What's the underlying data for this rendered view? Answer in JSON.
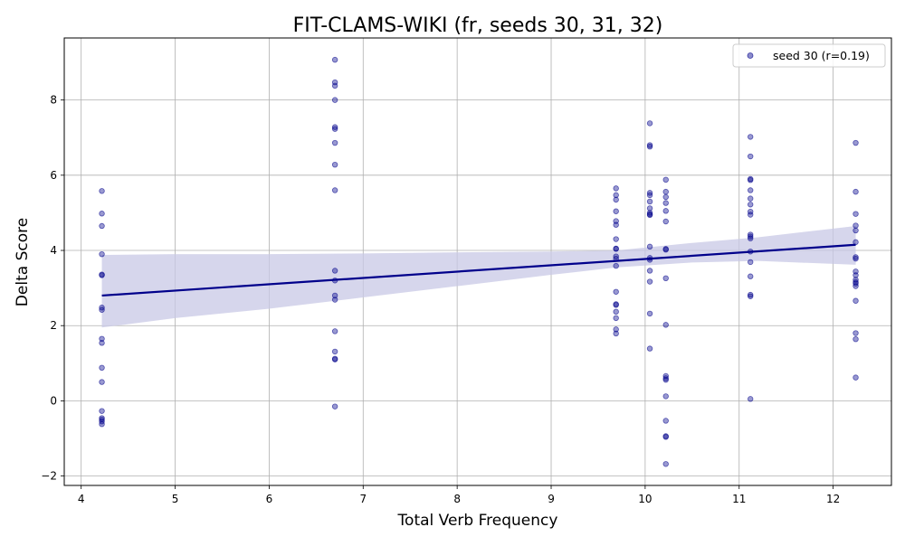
{
  "chart_data": {
    "type": "scatter",
    "title": "FIT-CLAMS-WIKI (fr, seeds 30, 31, 32)",
    "xlabel": "Total Verb Frequency",
    "ylabel": "Delta Score",
    "xlim": [
      3.82,
      12.62
    ],
    "ylim": [
      -2.25,
      9.65
    ],
    "xticks": [
      4,
      5,
      6,
      7,
      8,
      9,
      10,
      11,
      12
    ],
    "yticks": [
      -2,
      0,
      2,
      4,
      6,
      8
    ],
    "ytick_labels": [
      "−2",
      "0",
      "2",
      "4",
      "6",
      "8"
    ],
    "grid": true,
    "legend_position": "top-right",
    "colors": {
      "points": "#00008b",
      "line": "#00008b",
      "band": "#c8c8e6"
    },
    "series": [
      {
        "name": "seed 30 (r=0.19)",
        "points": [
          [
            4.22,
            5.58
          ],
          [
            4.22,
            4.98
          ],
          [
            4.22,
            4.65
          ],
          [
            4.22,
            3.9
          ],
          [
            4.22,
            3.36
          ],
          [
            4.22,
            3.34
          ],
          [
            4.22,
            2.48
          ],
          [
            4.22,
            2.42
          ],
          [
            4.22,
            1.65
          ],
          [
            4.22,
            1.54
          ],
          [
            4.22,
            0.88
          ],
          [
            4.22,
            0.5
          ],
          [
            4.22,
            -0.27
          ],
          [
            4.22,
            -0.46
          ],
          [
            4.22,
            -0.5
          ],
          [
            4.22,
            -0.55
          ],
          [
            4.22,
            -0.62
          ],
          [
            6.7,
            9.07
          ],
          [
            6.7,
            8.47
          ],
          [
            6.7,
            8.38
          ],
          [
            6.7,
            8.0
          ],
          [
            6.7,
            7.28
          ],
          [
            6.7,
            7.23
          ],
          [
            6.7,
            6.86
          ],
          [
            6.7,
            6.28
          ],
          [
            6.7,
            5.6
          ],
          [
            6.7,
            3.46
          ],
          [
            6.7,
            3.2
          ],
          [
            6.7,
            2.8
          ],
          [
            6.7,
            2.69
          ],
          [
            6.7,
            1.85
          ],
          [
            6.7,
            1.31
          ],
          [
            6.7,
            1.12
          ],
          [
            6.7,
            1.1
          ],
          [
            6.7,
            -0.15
          ],
          [
            9.69,
            5.65
          ],
          [
            9.69,
            5.47
          ],
          [
            9.69,
            5.35
          ],
          [
            9.69,
            5.04
          ],
          [
            9.69,
            4.78
          ],
          [
            9.69,
            4.68
          ],
          [
            9.69,
            4.3
          ],
          [
            9.69,
            4.05
          ],
          [
            9.69,
            4.04
          ],
          [
            9.69,
            3.84
          ],
          [
            9.69,
            3.78
          ],
          [
            9.69,
            3.59
          ],
          [
            9.69,
            2.9
          ],
          [
            9.69,
            2.57
          ],
          [
            9.69,
            2.55
          ],
          [
            9.69,
            2.37
          ],
          [
            9.69,
            2.2
          ],
          [
            9.69,
            1.9
          ],
          [
            9.69,
            1.79
          ],
          [
            10.05,
            7.38
          ],
          [
            10.05,
            6.8
          ],
          [
            10.05,
            6.76
          ],
          [
            10.05,
            5.53
          ],
          [
            10.05,
            5.47
          ],
          [
            10.05,
            5.3
          ],
          [
            10.05,
            5.12
          ],
          [
            10.05,
            5.0
          ],
          [
            10.05,
            4.96
          ],
          [
            10.05,
            4.94
          ],
          [
            10.05,
            4.1
          ],
          [
            10.05,
            3.8
          ],
          [
            10.05,
            3.75
          ],
          [
            10.05,
            3.46
          ],
          [
            10.05,
            3.17
          ],
          [
            10.05,
            2.32
          ],
          [
            10.05,
            1.39
          ],
          [
            10.22,
            5.88
          ],
          [
            10.22,
            5.56
          ],
          [
            10.22,
            5.42
          ],
          [
            10.22,
            5.26
          ],
          [
            10.22,
            5.05
          ],
          [
            10.22,
            4.77
          ],
          [
            10.22,
            4.04
          ],
          [
            10.22,
            4.02
          ],
          [
            10.22,
            3.26
          ],
          [
            10.22,
            2.02
          ],
          [
            10.22,
            0.66
          ],
          [
            10.22,
            0.6
          ],
          [
            10.22,
            0.56
          ],
          [
            10.22,
            0.12
          ],
          [
            10.22,
            -0.53
          ],
          [
            10.22,
            -0.94
          ],
          [
            10.22,
            -0.96
          ],
          [
            10.22,
            -1.68
          ],
          [
            11.12,
            7.02
          ],
          [
            11.12,
            6.5
          ],
          [
            11.12,
            5.9
          ],
          [
            11.12,
            5.87
          ],
          [
            11.12,
            5.6
          ],
          [
            11.12,
            5.38
          ],
          [
            11.12,
            5.22
          ],
          [
            11.12,
            5.03
          ],
          [
            11.12,
            4.95
          ],
          [
            11.12,
            4.42
          ],
          [
            11.12,
            4.37
          ],
          [
            11.12,
            4.32
          ],
          [
            11.12,
            3.97
          ],
          [
            11.12,
            3.69
          ],
          [
            11.12,
            3.31
          ],
          [
            11.12,
            2.82
          ],
          [
            11.12,
            2.78
          ],
          [
            11.12,
            0.05
          ],
          [
            12.24,
            6.86
          ],
          [
            12.24,
            5.56
          ],
          [
            12.24,
            4.97
          ],
          [
            12.24,
            4.66
          ],
          [
            12.24,
            4.53
          ],
          [
            12.24,
            4.22
          ],
          [
            12.24,
            3.82
          ],
          [
            12.24,
            3.78
          ],
          [
            12.24,
            3.44
          ],
          [
            12.24,
            3.34
          ],
          [
            12.24,
            3.22
          ],
          [
            12.24,
            3.16
          ],
          [
            12.24,
            3.12
          ],
          [
            12.24,
            3.05
          ],
          [
            12.24,
            2.66
          ],
          [
            12.24,
            1.8
          ],
          [
            12.24,
            1.64
          ],
          [
            12.24,
            0.62
          ]
        ]
      }
    ],
    "regression": {
      "x": [
        4.22,
        12.24
      ],
      "y": [
        2.8,
        4.15
      ],
      "ci_lower": [
        [
          4.22,
          1.95
        ],
        [
          5.0,
          2.2
        ],
        [
          6.0,
          2.45
        ],
        [
          7.0,
          2.75
        ],
        [
          8.0,
          3.05
        ],
        [
          9.0,
          3.35
        ],
        [
          9.7,
          3.55
        ],
        [
          10.5,
          3.68
        ],
        [
          11.2,
          3.72
        ],
        [
          12.24,
          3.62
        ]
      ],
      "ci_upper": [
        [
          4.22,
          3.88
        ],
        [
          5.0,
          3.9
        ],
        [
          6.0,
          3.9
        ],
        [
          7.0,
          3.92
        ],
        [
          8.0,
          3.95
        ],
        [
          9.0,
          3.97
        ],
        [
          9.7,
          4.0
        ],
        [
          10.5,
          4.2
        ],
        [
          11.2,
          4.35
        ],
        [
          12.24,
          4.65
        ]
      ]
    }
  }
}
